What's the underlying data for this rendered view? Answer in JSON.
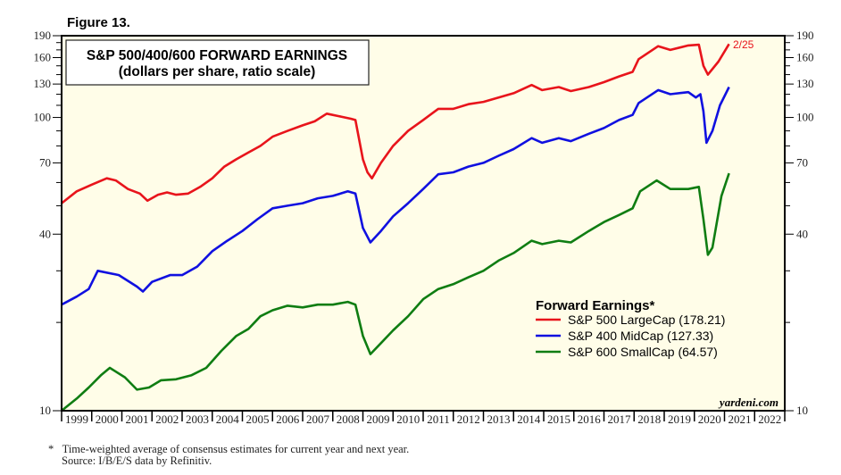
{
  "figure_label": "Figure 13.",
  "footnote": {
    "marker": "*",
    "line1": "Time-weighted average of consensus estimates for current year and next year.",
    "line2": "Source: I/B/E/S data by Refinitiv."
  },
  "chart_data": {
    "type": "line",
    "title": "S&P 500/400/600 FORWARD EARNINGS",
    "subtitle": "(dollars per share, ratio scale)",
    "yscale": "log",
    "ylim": [
      10,
      190
    ],
    "yticks": [
      10,
      40,
      70,
      100,
      130,
      160,
      190
    ],
    "xlim": [
      1999,
      2023
    ],
    "xtick_labels": [
      "1999",
      "2000",
      "2001",
      "2002",
      "2003",
      "2004",
      "2005",
      "2006",
      "2007",
      "2008",
      "2009",
      "2010",
      "2011",
      "2012",
      "2013",
      "2014",
      "2015",
      "2016",
      "2017",
      "2018",
      "2019",
      "2020",
      "2021",
      "2022"
    ],
    "date_annotation": "2/25",
    "watermark": "yardeni.com",
    "legend": {
      "title": "Forward Earnings*",
      "placement": "lower-right"
    },
    "series": [
      {
        "name": "S&P 500 LargeCap (178.21)",
        "color": "#e8141b",
        "points": [
          [
            1999.0,
            51
          ],
          [
            1999.5,
            56
          ],
          [
            2000.0,
            59
          ],
          [
            2000.5,
            62
          ],
          [
            2000.8,
            61
          ],
          [
            2001.2,
            57
          ],
          [
            2001.6,
            55
          ],
          [
            2001.85,
            52
          ],
          [
            2002.2,
            54.5
          ],
          [
            2002.5,
            55.5
          ],
          [
            2002.8,
            54.5
          ],
          [
            2003.2,
            55
          ],
          [
            2003.6,
            58
          ],
          [
            2004.0,
            62
          ],
          [
            2004.4,
            68
          ],
          [
            2004.8,
            72
          ],
          [
            2005.2,
            76
          ],
          [
            2005.6,
            80
          ],
          [
            2006.0,
            86
          ],
          [
            2006.5,
            90
          ],
          [
            2007.0,
            94
          ],
          [
            2007.4,
            97
          ],
          [
            2007.8,
            103
          ],
          [
            2008.2,
            101
          ],
          [
            2008.6,
            99
          ],
          [
            2008.75,
            98
          ],
          [
            2009.0,
            72
          ],
          [
            2009.15,
            65
          ],
          [
            2009.3,
            62
          ],
          [
            2009.6,
            70
          ],
          [
            2010.0,
            80
          ],
          [
            2010.5,
            90
          ],
          [
            2011.0,
            98
          ],
          [
            2011.5,
            107
          ],
          [
            2012.0,
            107
          ],
          [
            2012.5,
            111
          ],
          [
            2013.0,
            113
          ],
          [
            2013.5,
            117
          ],
          [
            2014.0,
            121
          ],
          [
            2014.6,
            129
          ],
          [
            2014.95,
            124
          ],
          [
            2015.5,
            127
          ],
          [
            2015.9,
            123
          ],
          [
            2016.5,
            127
          ],
          [
            2017.0,
            132
          ],
          [
            2017.5,
            138
          ],
          [
            2017.95,
            143
          ],
          [
            2018.15,
            158
          ],
          [
            2018.8,
            175
          ],
          [
            2019.2,
            170
          ],
          [
            2019.8,
            176
          ],
          [
            2020.15,
            177
          ],
          [
            2020.3,
            150
          ],
          [
            2020.45,
            140
          ],
          [
            2020.8,
            155
          ],
          [
            2021.15,
            178
          ]
        ]
      },
      {
        "name": "S&P 400 MidCap (127.33)",
        "color": "#1010e0",
        "points": [
          [
            1999.0,
            23
          ],
          [
            1999.5,
            24.5
          ],
          [
            1999.9,
            26
          ],
          [
            2000.2,
            30
          ],
          [
            2000.9,
            29
          ],
          [
            2001.5,
            26.5
          ],
          [
            2001.7,
            25.5
          ],
          [
            2002.0,
            27.5
          ],
          [
            2002.6,
            29
          ],
          [
            2003.0,
            29
          ],
          [
            2003.5,
            31
          ],
          [
            2004.0,
            35
          ],
          [
            2004.5,
            38
          ],
          [
            2005.0,
            41
          ],
          [
            2005.5,
            45
          ],
          [
            2006.0,
            49
          ],
          [
            2006.5,
            50
          ],
          [
            2007.0,
            51
          ],
          [
            2007.5,
            53
          ],
          [
            2008.0,
            54
          ],
          [
            2008.5,
            56
          ],
          [
            2008.75,
            55
          ],
          [
            2009.0,
            42
          ],
          [
            2009.25,
            37.5
          ],
          [
            2009.6,
            41
          ],
          [
            2010.0,
            46
          ],
          [
            2010.5,
            51
          ],
          [
            2011.0,
            57
          ],
          [
            2011.5,
            64
          ],
          [
            2012.0,
            65
          ],
          [
            2012.5,
            68
          ],
          [
            2013.0,
            70
          ],
          [
            2013.5,
            74
          ],
          [
            2014.0,
            78
          ],
          [
            2014.6,
            85
          ],
          [
            2014.95,
            82
          ],
          [
            2015.5,
            85
          ],
          [
            2015.9,
            83
          ],
          [
            2016.5,
            88
          ],
          [
            2017.0,
            92
          ],
          [
            2017.5,
            98
          ],
          [
            2017.95,
            102
          ],
          [
            2018.15,
            112
          ],
          [
            2018.8,
            124
          ],
          [
            2019.2,
            120
          ],
          [
            2019.8,
            122
          ],
          [
            2020.05,
            117
          ],
          [
            2020.2,
            120
          ],
          [
            2020.3,
            105
          ],
          [
            2020.4,
            82
          ],
          [
            2020.6,
            90
          ],
          [
            2020.85,
            110
          ],
          [
            2021.15,
            127
          ]
        ]
      },
      {
        "name": "S&P 600 SmallCap (64.57)",
        "color": "#0f7d12",
        "points": [
          [
            1999.0,
            10
          ],
          [
            1999.5,
            11
          ],
          [
            1999.9,
            12
          ],
          [
            2000.3,
            13.2
          ],
          [
            2000.6,
            14
          ],
          [
            2001.1,
            13
          ],
          [
            2001.5,
            11.8
          ],
          [
            2001.9,
            12
          ],
          [
            2002.3,
            12.7
          ],
          [
            2002.8,
            12.8
          ],
          [
            2003.3,
            13.2
          ],
          [
            2003.8,
            14
          ],
          [
            2004.3,
            16
          ],
          [
            2004.8,
            18
          ],
          [
            2005.2,
            19
          ],
          [
            2005.6,
            21
          ],
          [
            2006.0,
            22
          ],
          [
            2006.5,
            22.8
          ],
          [
            2007.0,
            22.5
          ],
          [
            2007.5,
            23
          ],
          [
            2008.0,
            23
          ],
          [
            2008.5,
            23.5
          ],
          [
            2008.75,
            23
          ],
          [
            2009.0,
            18
          ],
          [
            2009.25,
            15.6
          ],
          [
            2009.6,
            17
          ],
          [
            2010.0,
            18.8
          ],
          [
            2010.5,
            21
          ],
          [
            2011.0,
            24
          ],
          [
            2011.5,
            26
          ],
          [
            2012.0,
            27
          ],
          [
            2012.5,
            28.5
          ],
          [
            2013.0,
            30
          ],
          [
            2013.5,
            32.5
          ],
          [
            2014.0,
            34.5
          ],
          [
            2014.6,
            38
          ],
          [
            2014.95,
            37
          ],
          [
            2015.5,
            38
          ],
          [
            2015.9,
            37.5
          ],
          [
            2016.5,
            41
          ],
          [
            2017.0,
            44
          ],
          [
            2017.5,
            46.5
          ],
          [
            2017.95,
            49
          ],
          [
            2018.2,
            56
          ],
          [
            2018.75,
            61
          ],
          [
            2019.2,
            57
          ],
          [
            2019.8,
            57
          ],
          [
            2020.15,
            58
          ],
          [
            2020.3,
            45
          ],
          [
            2020.45,
            34
          ],
          [
            2020.6,
            36
          ],
          [
            2020.9,
            54
          ],
          [
            2021.15,
            64.5
          ]
        ]
      }
    ]
  }
}
